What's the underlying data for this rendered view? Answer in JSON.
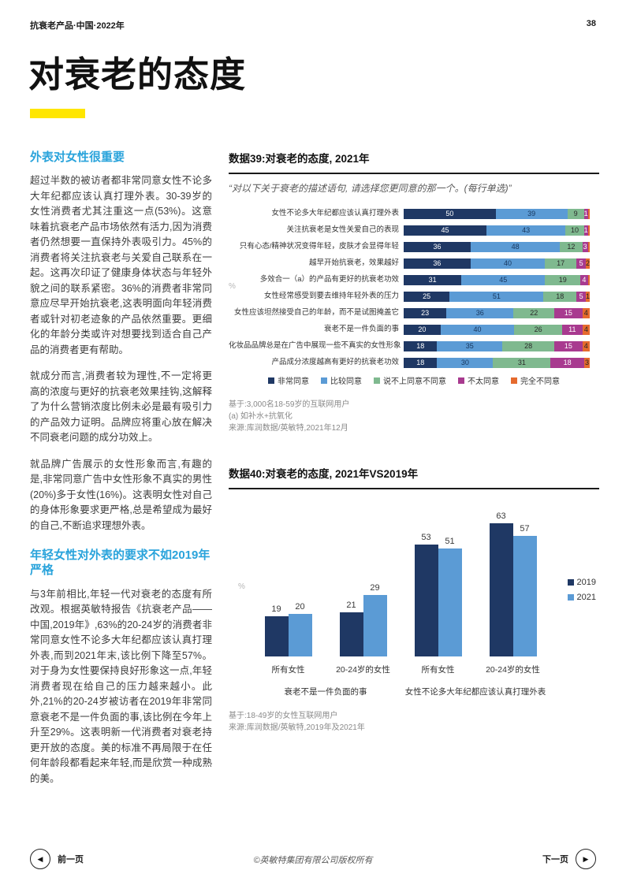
{
  "header": {
    "report_title": "抗衰老产品·中国·2022年",
    "page_number": "38"
  },
  "page": {
    "title": "对衰老的态度"
  },
  "left_column": {
    "sections": [
      {
        "heading": "外表对女性很重要",
        "paragraphs": [
          "超过半数的被访者都非常同意女性不论多大年纪都应该认真打理外表。30-39岁的女性消费者尤其注重这一点(53%)。这意味着抗衰老产品市场依然有活力,因为消费者仍然想要一直保持外表吸引力。45%的消费者将关注抗衰老与关爱自己联系在一起。这再次印证了健康身体状态与年轻外貌之间的联系紧密。36%的消费者非常同意应尽早开始抗衰老,这表明面向年轻消费者或针对初老迹象的产品依然重要。更细化的年龄分类或许对想要找到适合自己产品的消费者更有帮助。",
          "就成分而言,消费者较为理性,不一定将更高的浓度与更好的抗衰老效果挂钩,这解释了为什么营销浓度比例未必是最有吸引力的产品效力证明。品牌应将重心放在解决不同衰老问题的成分功效上。",
          "就品牌广告展示的女性形象而言,有趣的是,非常同意广告中女性形象不真实的男性(20%)多于女性(16%)。这表明女性对自己的身体形象要求更严格,总是希望成为最好的自己,不断追求理想外表。"
        ]
      },
      {
        "heading": "年轻女性对外表的要求不如2019年严格",
        "paragraphs": [
          "与3年前相比,年轻一代对衰老的态度有所改观。根据英敏特报告《抗衰老产品——中国,2019年》,63%的20-24岁的消费者非常同意女性不论多大年纪都应该认真打理外表,而到2021年末,该比例下降至57%。对于身为女性要保持良好形象这一点,年轻消费者现在给自己的压力越来越小。此外,21%的20-24岁被访者在2019年非常同意衰老不是一件负面的事,该比例在今年上升至29%。这表明新一代消费者对衰老持更开放的态度。美的标准不再局限于在任何年龄段都看起来年轻,而是欣赏一种成熟的美。"
        ]
      }
    ]
  },
  "figure39": {
    "title": "数据39:对衰老的态度, 2021年",
    "quote": "“对以下关于衰老的描述语句, 请选择您更同意的那一个。(每行单选)”",
    "footnotes": [
      "基于:3,000名18-59岁的互联网用户",
      "(a) 如补水+抗氧化",
      "来源:库润数据/英敏特,2021年12月"
    ]
  },
  "figure40": {
    "title": "数据40:对衰老的态度, 2021年VS2019年",
    "footnotes": [
      "基于:18-49岁的女性互联网用户",
      "来源:库润数据/英敏特,2019年及2021年"
    ]
  },
  "chart_data": [
    {
      "id": "figure-39",
      "type": "bar",
      "orientation": "horizontal",
      "stacked": true,
      "title": "数据39:对衰老的态度, 2021年",
      "unit": "%",
      "xlim": [
        0,
        100
      ],
      "legend": [
        "非常同意",
        "比较同意",
        "说不上同意不同意",
        "不太同意",
        "完全不同意"
      ],
      "colors": [
        "#1f3864",
        "#5b9bd5",
        "#7fb98f",
        "#a83a8f",
        "#e56a2e"
      ],
      "label_colors": [
        "#ffffff",
        "#17365d",
        "#2b2b2b",
        "#ffffff",
        "#222222"
      ],
      "rows": [
        {
          "label": "女性不论多大年纪都应该认真打理外表",
          "values": [
            50,
            39,
            9,
            1,
            1
          ],
          "value_labels": [
            "50",
            "39",
            "9",
            "1",
            ""
          ]
        },
        {
          "label": "关注抗衰老是女性关爱自己的表现",
          "values": [
            45,
            43,
            10,
            1,
            1
          ],
          "value_labels": [
            "45",
            "43",
            "10",
            "1",
            ""
          ]
        },
        {
          "label": "只有心态/精神状况变得年轻，皮肤才会显得年轻",
          "values": [
            36,
            48,
            12,
            3,
            1
          ],
          "value_labels": [
            "36",
            "48",
            "12",
            "3",
            ""
          ]
        },
        {
          "label": "越早开始抗衰老，效果越好",
          "values": [
            36,
            40,
            17,
            5,
            2
          ],
          "value_labels": [
            "36",
            "40",
            "17",
            "5",
            "2"
          ]
        },
        {
          "label": "多效合一（a）的产品有更好的抗衰老功效",
          "values": [
            31,
            45,
            19,
            4,
            1
          ],
          "value_labels": [
            "31",
            "45",
            "19",
            "4",
            ""
          ]
        },
        {
          "label": "女性经常感受到要去维持年轻外表的压力",
          "values": [
            25,
            51,
            18,
            5,
            1
          ],
          "value_labels": [
            "25",
            "51",
            "18",
            "5",
            "1"
          ]
        },
        {
          "label": "女性应该坦然接受自己的年龄，而不是试图掩盖它",
          "values": [
            23,
            36,
            22,
            15,
            4
          ],
          "value_labels": [
            "23",
            "36",
            "22",
            "15",
            "4"
          ]
        },
        {
          "label": "衰老不是一件负面的事",
          "values": [
            20,
            40,
            26,
            11,
            4
          ],
          "value_labels": [
            "20",
            "40",
            "26",
            "11",
            "4"
          ]
        },
        {
          "label": "化妆品品牌总是在广告中展现一些不真实的女性形象",
          "values": [
            18,
            35,
            28,
            15,
            4
          ],
          "value_labels": [
            "18",
            "35",
            "28",
            "15",
            "4"
          ]
        },
        {
          "label": "产品成分浓度越高有更好的抗衰老功效",
          "values": [
            18,
            30,
            31,
            18,
            3
          ],
          "value_labels": [
            "18",
            "30",
            "31",
            "18",
            "3"
          ]
        }
      ]
    },
    {
      "id": "figure-40",
      "type": "bar",
      "orientation": "vertical",
      "grouped": true,
      "title": "数据40:对衰老的态度, 2021年VS2019年",
      "unit": "%",
      "ylim": [
        0,
        70
      ],
      "categories": [
        "所有女性",
        "20-24岁的女性",
        "所有女性",
        "20-24岁的女性"
      ],
      "group_headers": [
        "衰老不是一件负面的事",
        "女性不论多大年纪都应该认真打理外表"
      ],
      "series": [
        {
          "name": "2019",
          "color": "#1f3864",
          "values": [
            19,
            21,
            53,
            63
          ]
        },
        {
          "name": "2021",
          "color": "#5b9bd5",
          "values": [
            20,
            29,
            51,
            57
          ]
        }
      ]
    }
  ],
  "footer": {
    "prev_label": "前一页",
    "next_label": "下一页",
    "prev_icon": "◀",
    "next_icon": "▶",
    "copyright": "©英敏特集团有限公司版权所有"
  },
  "colors": {
    "accent_heading_blue": "#29a3db",
    "highlight_yellow": "#ffe600",
    "strongly_agree_navy": "#1f3864",
    "somewhat_agree_blue": "#5b9bd5",
    "neither_green": "#7fb98f",
    "disagree_magenta": "#a83a8f",
    "strongly_disagree_orange": "#e56a2e"
  }
}
